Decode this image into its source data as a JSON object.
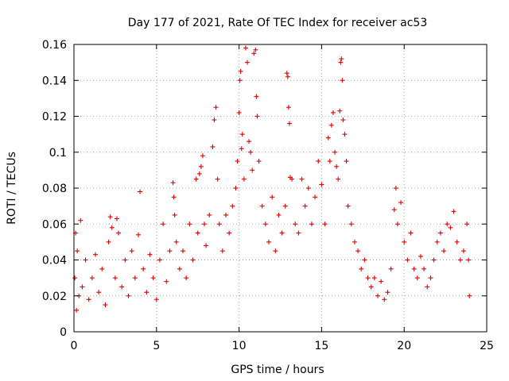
{
  "chart_data": {
    "type": "scatter",
    "title": "Day 177 of 2021, Rate Of TEC Index for receiver ac53",
    "xlabel": "GPS time / hours",
    "ylabel": "ROTI / TECUs",
    "xlim": [
      0,
      25
    ],
    "ylim": [
      0,
      0.16
    ],
    "xticks": [
      0,
      5,
      10,
      15,
      20,
      25
    ],
    "xtick_labels": [
      "0",
      "5",
      "10",
      "15",
      "20",
      "25"
    ],
    "yticks": [
      0,
      0.02,
      0.04,
      0.06,
      0.08,
      0.1,
      0.12,
      0.14,
      0.16
    ],
    "ytick_labels": [
      "0",
      "0.02",
      "0.04",
      "0.06",
      "0.08",
      "0.1",
      "0.12",
      "0.14",
      "0.16"
    ],
    "grid": true,
    "marker": "+",
    "color": "#e00000",
    "series": [
      {
        "points": [
          [
            0.05,
            0.03
          ],
          [
            0.1,
            0.055
          ],
          [
            0.15,
            0.012
          ],
          [
            0.2,
            0.045
          ],
          [
            0.3,
            0.02
          ],
          [
            0.5,
            0.025
          ],
          [
            0.7,
            0.04
          ],
          [
            0.4,
            0.062
          ],
          [
            0.9,
            0.018
          ],
          [
            1.1,
            0.03
          ],
          [
            1.3,
            0.043
          ],
          [
            1.5,
            0.022
          ],
          [
            1.7,
            0.035
          ],
          [
            1.9,
            0.015
          ],
          [
            2.1,
            0.05
          ],
          [
            2.2,
            0.064
          ],
          [
            2.3,
            0.058
          ],
          [
            2.5,
            0.03
          ],
          [
            2.6,
            0.063
          ],
          [
            2.7,
            0.055
          ],
          [
            2.9,
            0.025
          ],
          [
            3.1,
            0.04
          ],
          [
            3.3,
            0.02
          ],
          [
            3.5,
            0.045
          ],
          [
            3.7,
            0.03
          ],
          [
            3.9,
            0.054
          ],
          [
            4.0,
            0.078
          ],
          [
            4.2,
            0.035
          ],
          [
            4.4,
            0.022
          ],
          [
            4.6,
            0.043
          ],
          [
            4.8,
            0.03
          ],
          [
            5.0,
            0.018
          ],
          [
            5.2,
            0.04
          ],
          [
            5.4,
            0.06
          ],
          [
            5.6,
            0.028
          ],
          [
            5.8,
            0.045
          ],
          [
            6.0,
            0.083
          ],
          [
            6.05,
            0.075
          ],
          [
            6.1,
            0.065
          ],
          [
            6.2,
            0.05
          ],
          [
            6.4,
            0.035
          ],
          [
            6.6,
            0.045
          ],
          [
            6.8,
            0.03
          ],
          [
            7.0,
            0.06
          ],
          [
            7.2,
            0.04
          ],
          [
            7.4,
            0.085
          ],
          [
            7.5,
            0.055
          ],
          [
            7.6,
            0.088
          ],
          [
            7.7,
            0.092
          ],
          [
            7.8,
            0.098
          ],
          [
            7.9,
            0.06
          ],
          [
            8.0,
            0.048
          ],
          [
            8.2,
            0.065
          ],
          [
            8.4,
            0.103
          ],
          [
            8.5,
            0.118
          ],
          [
            8.6,
            0.125
          ],
          [
            8.7,
            0.085
          ],
          [
            8.8,
            0.06
          ],
          [
            9.0,
            0.045
          ],
          [
            9.2,
            0.065
          ],
          [
            9.4,
            0.055
          ],
          [
            9.6,
            0.07
          ],
          [
            9.8,
            0.08
          ],
          [
            9.9,
            0.095
          ],
          [
            10.0,
            0.122
          ],
          [
            10.05,
            0.14
          ],
          [
            10.1,
            0.145
          ],
          [
            10.15,
            0.102
          ],
          [
            10.2,
            0.11
          ],
          [
            10.3,
            0.085
          ],
          [
            10.4,
            0.158
          ],
          [
            10.5,
            0.15
          ],
          [
            10.6,
            0.106
          ],
          [
            10.7,
            0.1
          ],
          [
            10.8,
            0.09
          ],
          [
            10.9,
            0.155
          ],
          [
            11.0,
            0.157
          ],
          [
            11.05,
            0.131
          ],
          [
            11.1,
            0.12
          ],
          [
            11.2,
            0.095
          ],
          [
            11.4,
            0.07
          ],
          [
            11.6,
            0.06
          ],
          [
            11.8,
            0.05
          ],
          [
            12.0,
            0.075
          ],
          [
            12.2,
            0.045
          ],
          [
            12.4,
            0.065
          ],
          [
            12.6,
            0.055
          ],
          [
            12.8,
            0.07
          ],
          [
            12.9,
            0.144
          ],
          [
            12.95,
            0.142
          ],
          [
            13.0,
            0.125
          ],
          [
            13.05,
            0.116
          ],
          [
            13.1,
            0.086
          ],
          [
            13.2,
            0.085
          ],
          [
            13.4,
            0.06
          ],
          [
            13.6,
            0.055
          ],
          [
            13.8,
            0.085
          ],
          [
            14.0,
            0.07
          ],
          [
            14.2,
            0.08
          ],
          [
            14.4,
            0.06
          ],
          [
            14.6,
            0.075
          ],
          [
            14.8,
            0.095
          ],
          [
            15.0,
            0.082
          ],
          [
            15.2,
            0.06
          ],
          [
            15.4,
            0.108
          ],
          [
            15.5,
            0.095
          ],
          [
            15.6,
            0.115
          ],
          [
            15.7,
            0.122
          ],
          [
            15.8,
            0.1
          ],
          [
            15.9,
            0.092
          ],
          [
            16.0,
            0.085
          ],
          [
            16.1,
            0.123
          ],
          [
            16.15,
            0.15
          ],
          [
            16.2,
            0.152
          ],
          [
            16.25,
            0.14
          ],
          [
            16.3,
            0.118
          ],
          [
            16.4,
            0.11
          ],
          [
            16.5,
            0.095
          ],
          [
            16.6,
            0.07
          ],
          [
            16.8,
            0.06
          ],
          [
            17.0,
            0.05
          ],
          [
            17.2,
            0.045
          ],
          [
            17.4,
            0.035
          ],
          [
            17.6,
            0.04
          ],
          [
            17.8,
            0.03
          ],
          [
            18.0,
            0.025
          ],
          [
            18.2,
            0.03
          ],
          [
            18.4,
            0.02
          ],
          [
            18.6,
            0.028
          ],
          [
            18.8,
            0.018
          ],
          [
            19.0,
            0.022
          ],
          [
            19.2,
            0.035
          ],
          [
            19.4,
            0.068
          ],
          [
            19.5,
            0.08
          ],
          [
            19.6,
            0.06
          ],
          [
            19.8,
            0.072
          ],
          [
            20.0,
            0.05
          ],
          [
            20.2,
            0.04
          ],
          [
            20.4,
            0.055
          ],
          [
            20.6,
            0.035
          ],
          [
            20.8,
            0.03
          ],
          [
            21.0,
            0.042
          ],
          [
            21.2,
            0.035
          ],
          [
            21.4,
            0.025
          ],
          [
            21.6,
            0.03
          ],
          [
            21.8,
            0.04
          ],
          [
            22.0,
            0.05
          ],
          [
            22.2,
            0.055
          ],
          [
            22.4,
            0.045
          ],
          [
            22.6,
            0.06
          ],
          [
            22.8,
            0.058
          ],
          [
            23.0,
            0.067
          ],
          [
            23.2,
            0.05
          ],
          [
            23.4,
            0.04
          ],
          [
            23.6,
            0.045
          ],
          [
            23.8,
            0.06
          ],
          [
            23.9,
            0.04
          ],
          [
            23.95,
            0.02
          ]
        ]
      }
    ]
  }
}
